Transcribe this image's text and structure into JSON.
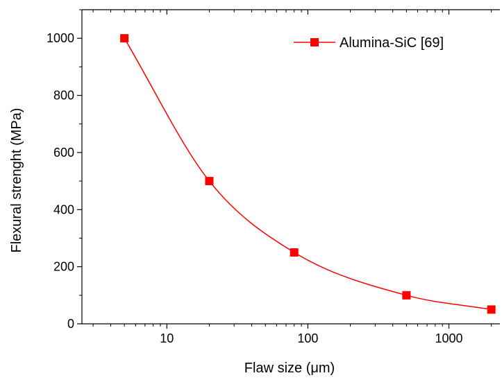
{
  "chart_data": {
    "type": "scatter",
    "x_scale": "log",
    "xlabel": "Flaw size (μm)",
    "ylabel": "Flexural strenght (MPa)",
    "xlim": [
      2.5,
      2300
    ],
    "ylim": [
      0,
      1100
    ],
    "x_ticks": [
      10,
      100,
      1000
    ],
    "x_tick_labels": [
      "10",
      "100",
      "1000"
    ],
    "y_ticks": [
      0,
      200,
      400,
      600,
      800,
      1000
    ],
    "y_tick_labels": [
      "0",
      "200",
      "400",
      "600",
      "800",
      "1000"
    ],
    "grid": false,
    "legend_position": "top-right",
    "series": [
      {
        "name": "Alumina-SiC [69]",
        "color": "#ff0000",
        "marker": "square",
        "points": [
          {
            "x": 5,
            "y": 1000
          },
          {
            "x": 20,
            "y": 500
          },
          {
            "x": 80,
            "y": 250
          },
          {
            "x": 500,
            "y": 100
          },
          {
            "x": 2000,
            "y": 50
          }
        ],
        "fit_line": true
      }
    ]
  }
}
